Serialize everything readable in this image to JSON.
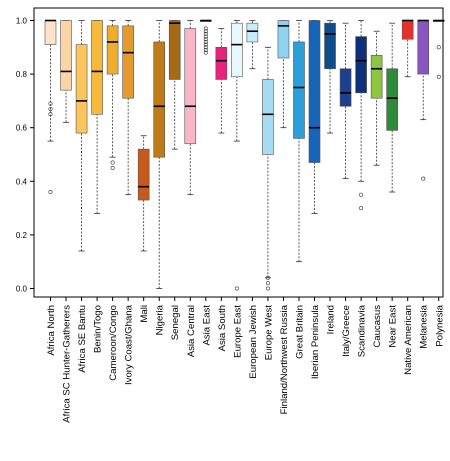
{
  "chart_data": {
    "type": "boxplot",
    "title": "",
    "xlabel": "",
    "ylabel": "",
    "ylim": [
      -0.05,
      1.05
    ],
    "yticks": [
      0.0,
      0.2,
      0.4,
      0.6,
      0.8,
      1.0
    ],
    "ytick_labels": [
      "0.0",
      "0.2",
      "0.4",
      "0.6",
      "0.8",
      "1.0"
    ],
    "grid": false,
    "legend": "none",
    "series": [
      {
        "category": "Africa North",
        "color": "#fde3c8",
        "min": 0.55,
        "q1": 0.91,
        "median": 1.0,
        "q3": 1.0,
        "max": 1.0,
        "outliers": [
          0.36,
          0.65,
          0.67,
          0.69
        ]
      },
      {
        "category": "Africa SC Hunter-Gatherers",
        "color": "#fcd5a6",
        "min": 0.62,
        "q1": 0.74,
        "median": 0.81,
        "q3": 1.0,
        "max": 1.0,
        "outliers": []
      },
      {
        "category": "Africa SE Bantu",
        "color": "#fcc45c",
        "min": 0.14,
        "q1": 0.58,
        "median": 0.7,
        "q3": 0.91,
        "max": 1.0,
        "outliers": []
      },
      {
        "category": "Benin/Togo",
        "color": "#f6b93b",
        "min": 0.28,
        "q1": 0.65,
        "median": 0.81,
        "q3": 1.0,
        "max": 1.0,
        "outliers": []
      },
      {
        "category": "Cameroon/Congo",
        "color": "#efad2f",
        "min": 0.49,
        "q1": 0.8,
        "median": 0.92,
        "q3": 0.98,
        "max": 1.0,
        "outliers": [
          0.45,
          0.47
        ]
      },
      {
        "category": "Ivory Coast/Ghana",
        "color": "#e59a2e",
        "min": 0.35,
        "q1": 0.71,
        "median": 0.88,
        "q3": 0.98,
        "max": 1.0,
        "outliers": []
      },
      {
        "category": "Mali",
        "color": "#c55a1a",
        "min": 0.14,
        "q1": 0.33,
        "median": 0.38,
        "q3": 0.52,
        "max": 0.57,
        "outliers": []
      },
      {
        "category": "Nigeria",
        "color": "#bf7a1a",
        "min": 0.0,
        "q1": 0.49,
        "median": 0.68,
        "q3": 0.92,
        "max": 1.0,
        "outliers": []
      },
      {
        "category": "Senegal",
        "color": "#a56a14",
        "min": 0.52,
        "q1": 0.78,
        "median": 0.99,
        "q3": 1.0,
        "max": 1.0,
        "outliers": []
      },
      {
        "category": "Asia Central",
        "color": "#f9b6c6",
        "min": 0.35,
        "q1": 0.54,
        "median": 0.68,
        "q3": 0.97,
        "max": 1.0,
        "outliers": []
      },
      {
        "category": "Asia East",
        "color": "#fbc8d4",
        "min": 1.0,
        "q1": 1.0,
        "median": 1.0,
        "q3": 1.0,
        "max": 1.0,
        "outliers": [
          0.97,
          0.96,
          0.95,
          0.94,
          0.93,
          0.92,
          0.91,
          0.9,
          0.89,
          0.88
        ]
      },
      {
        "category": "Asia South",
        "color": "#e8217c",
        "min": 0.58,
        "q1": 0.78,
        "median": 0.85,
        "q3": 0.9,
        "max": 0.97,
        "outliers": []
      },
      {
        "category": "Europe East",
        "color": "#e8f7fc",
        "min": 0.55,
        "q1": 0.79,
        "median": 0.91,
        "q3": 0.99,
        "max": 1.0,
        "outliers": [
          0.0
        ]
      },
      {
        "category": "European Jewish",
        "color": "#c6eef8",
        "min": 0.82,
        "q1": 0.92,
        "median": 0.96,
        "q3": 0.99,
        "max": 1.0,
        "outliers": []
      },
      {
        "category": "Europe West",
        "color": "#a7dcf5",
        "min": 0.04,
        "q1": 0.5,
        "median": 0.65,
        "q3": 0.78,
        "max": 0.9,
        "outliers": [
          0.0,
          0.02,
          0.04
        ]
      },
      {
        "category": "Finland/Northwest Russia",
        "color": "#8fd2f2",
        "min": 0.6,
        "q1": 0.86,
        "median": 0.98,
        "q3": 1.0,
        "max": 1.0,
        "outliers": []
      },
      {
        "category": "Great Britain",
        "color": "#2a9fd8",
        "min": 0.1,
        "q1": 0.56,
        "median": 0.75,
        "q3": 0.92,
        "max": 1.0,
        "outliers": []
      },
      {
        "category": "Iberian Peninsula",
        "color": "#1565b8",
        "min": 0.28,
        "q1": 0.47,
        "median": 0.6,
        "q3": 1.0,
        "max": 1.0,
        "outliers": []
      },
      {
        "category": "Ireland",
        "color": "#0e4c8a",
        "min": 0.58,
        "q1": 0.82,
        "median": 0.95,
        "q3": 0.99,
        "max": 1.0,
        "outliers": []
      },
      {
        "category": "Italy/Greece",
        "color": "#1d3f8f",
        "min": 0.41,
        "q1": 0.68,
        "median": 0.73,
        "q3": 0.82,
        "max": 0.99,
        "outliers": []
      },
      {
        "category": "Scandinavia",
        "color": "#0e2f7a",
        "min": 0.4,
        "q1": 0.73,
        "median": 0.85,
        "q3": 0.94,
        "max": 1.0,
        "outliers": [
          0.3,
          0.35
        ]
      },
      {
        "category": "Caucasus",
        "color": "#8dc63f",
        "min": 0.46,
        "q1": 0.71,
        "median": 0.82,
        "q3": 0.87,
        "max": 0.96,
        "outliers": []
      },
      {
        "category": "Near East",
        "color": "#2e8b3c",
        "min": 0.36,
        "q1": 0.59,
        "median": 0.71,
        "q3": 0.82,
        "max": 0.99,
        "outliers": []
      },
      {
        "category": "Native American",
        "color": "#e3312c",
        "min": 0.79,
        "q1": 0.93,
        "median": 1.0,
        "q3": 1.0,
        "max": 1.0,
        "outliers": []
      },
      {
        "category": "Melanesia",
        "color": "#8a55bf",
        "min": 0.63,
        "q1": 0.8,
        "median": 1.0,
        "q3": 1.0,
        "max": 1.0,
        "outliers": [
          0.41
        ]
      },
      {
        "category": "Polynesia",
        "color": "#c9a3dd",
        "min": 1.0,
        "q1": 1.0,
        "median": 1.0,
        "q3": 1.0,
        "max": 1.0,
        "outliers": [
          0.79,
          0.9
        ]
      }
    ]
  }
}
